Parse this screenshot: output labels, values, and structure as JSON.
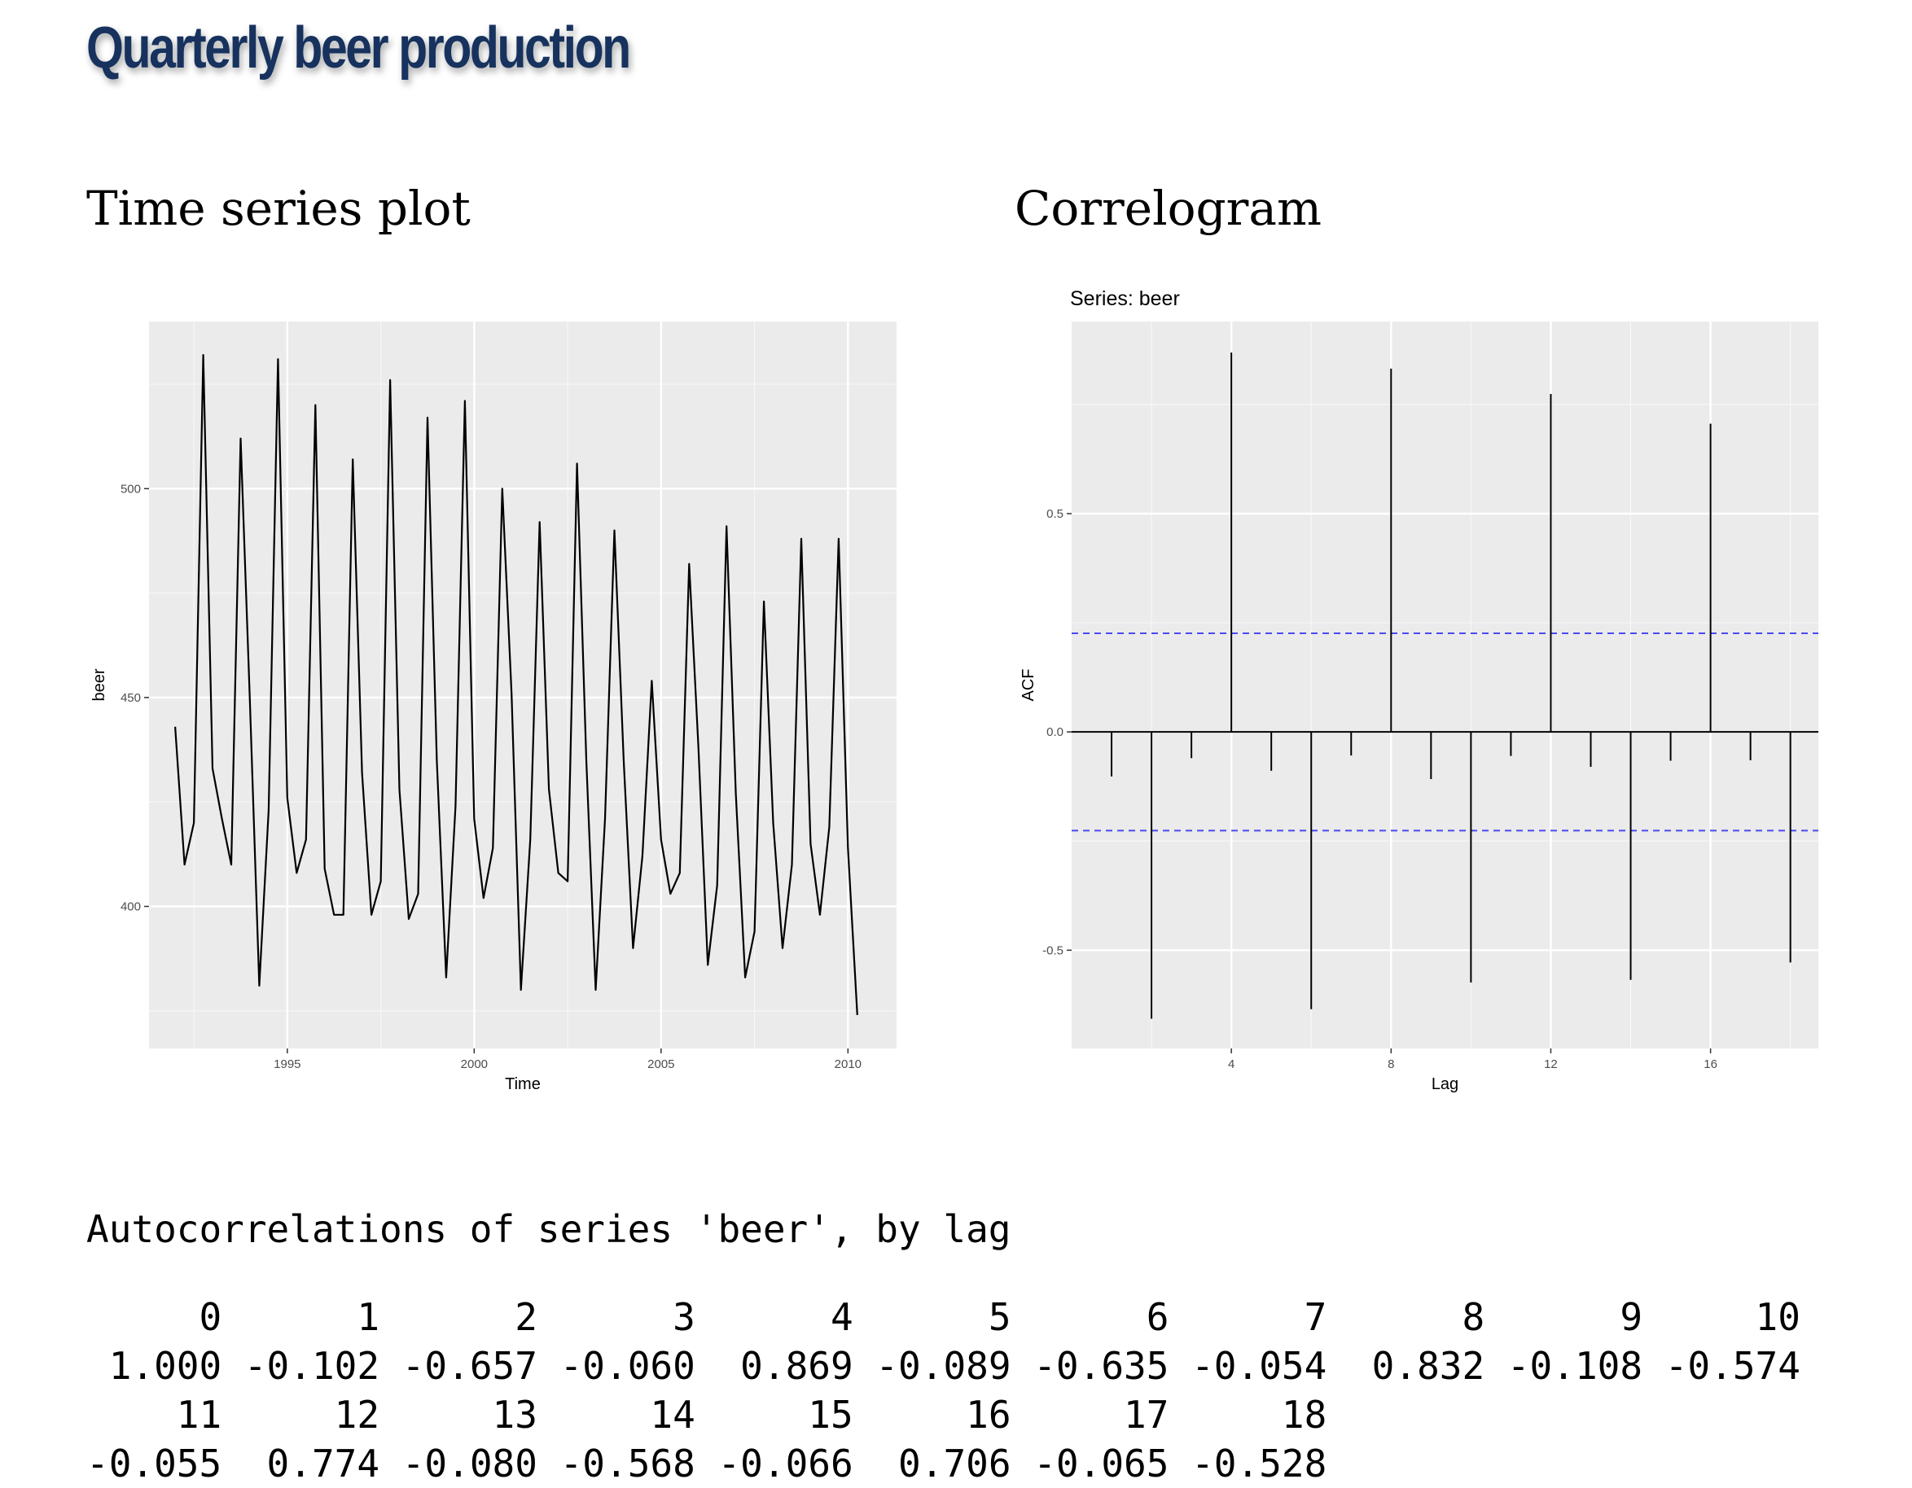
{
  "slide": {
    "title": "Quarterly beer production"
  },
  "left_panel": {
    "heading": "Time series plot"
  },
  "right_panel": {
    "heading": "Correlogram"
  },
  "chart_data": [
    {
      "type": "line",
      "title": "",
      "xlabel": "Time",
      "ylabel": "beer",
      "xlim": [
        1991.3,
        2011.3
      ],
      "ylim": [
        366,
        540
      ],
      "x_ticks": [
        1995,
        2000,
        2005,
        2010
      ],
      "x_tick_labels": [
        "1995",
        "2000",
        "2005",
        "2010"
      ],
      "y_ticks": [
        400,
        450,
        500
      ],
      "y_tick_labels": [
        "400",
        "450",
        "500"
      ],
      "grid": true,
      "x_start": 1992.0,
      "x_step": 0.25,
      "series": [
        {
          "color": "#000000",
          "values": [
            443,
            410,
            420,
            532,
            433,
            421,
            410,
            512,
            449,
            381,
            423,
            531,
            426,
            408,
            416,
            520,
            409,
            398,
            398,
            507,
            432,
            398,
            406,
            526,
            428,
            397,
            403,
            517,
            435,
            383,
            424,
            521,
            421,
            402,
            414,
            500,
            451,
            380,
            416,
            492,
            428,
            408,
            406,
            506,
            435,
            380,
            421,
            490,
            435,
            390,
            412,
            454,
            416,
            403,
            408,
            482,
            438,
            386,
            405,
            491,
            427,
            383,
            394,
            473,
            420,
            390,
            410,
            488,
            415,
            398,
            419,
            488,
            414,
            374
          ]
        }
      ]
    },
    {
      "type": "bar",
      "title": "Series: beer",
      "xlabel": "Lag",
      "ylabel": "ACF",
      "xlim": [
        0.0,
        18.7
      ],
      "ylim": [
        -0.725,
        0.94
      ],
      "x_ticks": [
        4,
        8,
        12,
        16
      ],
      "x_tick_labels": [
        "4",
        "8",
        "12",
        "16"
      ],
      "y_ticks": [
        -0.5,
        0.0,
        0.5
      ],
      "y_tick_labels": [
        "-0.5",
        "0.0",
        "0.5"
      ],
      "grid": true,
      "confidence_bound": 0.226,
      "confidence_color": "#4a4af0",
      "categories": [
        1,
        2,
        3,
        4,
        5,
        6,
        7,
        8,
        9,
        10,
        11,
        12,
        13,
        14,
        15,
        16,
        17,
        18
      ],
      "values": [
        -0.102,
        -0.657,
        -0.06,
        0.869,
        -0.089,
        -0.635,
        -0.054,
        0.832,
        -0.108,
        -0.574,
        -0.055,
        0.774,
        -0.08,
        -0.568,
        -0.066,
        0.706,
        -0.065,
        -0.528
      ]
    }
  ],
  "output": {
    "caption": "Autocorrelations of series 'beer', by lag",
    "rows": [
      {
        "lags": [
          "0",
          "1",
          "2",
          "3",
          "4",
          "5",
          "6",
          "7",
          "8",
          "9",
          "10"
        ],
        "values": [
          "1.000",
          "-0.102",
          "-0.657",
          "-0.060",
          "0.869",
          "-0.089",
          "-0.635",
          "-0.054",
          "0.832",
          "-0.108",
          "-0.574"
        ]
      },
      {
        "lags": [
          "11",
          "12",
          "13",
          "14",
          "15",
          "16",
          "17",
          "18"
        ],
        "values": [
          "-0.055",
          "0.774",
          "-0.080",
          "-0.568",
          "-0.066",
          "0.706",
          "-0.065",
          "-0.528"
        ]
      }
    ]
  }
}
